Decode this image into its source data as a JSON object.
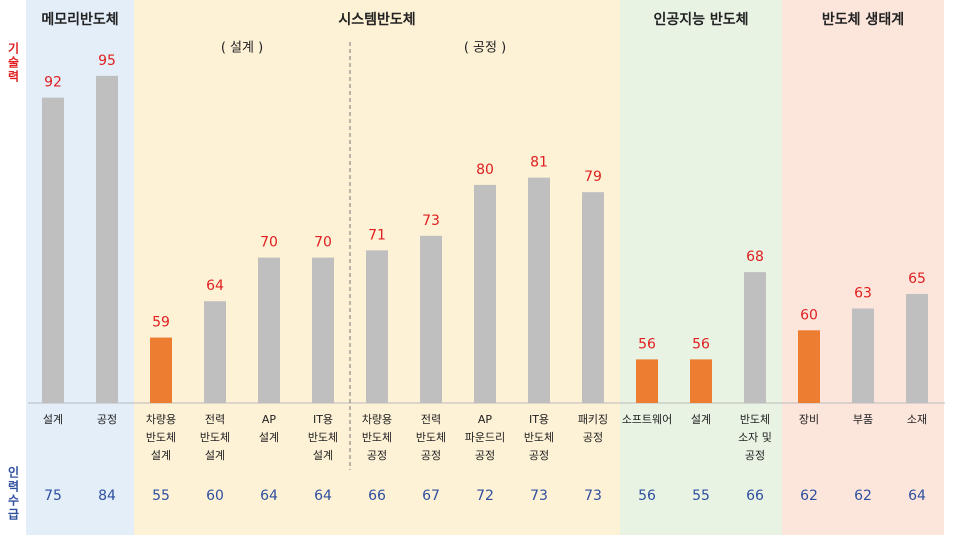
{
  "chart_data": {
    "type": "bar",
    "value_label": "기술력",
    "value_label_color": "#e02020",
    "supply_label": "인력수급",
    "supply_color": "#2f4f9f",
    "ylim": [
      50,
      100
    ],
    "groups": [
      {
        "name": "메모리반도체",
        "color": "#e3eef9",
        "sections": [
          {
            "categories": [
              [
                "설계"
              ],
              [
                "공정"
              ]
            ],
            "values": [
              92,
              95
            ],
            "colors": [
              "#bfbfbf",
              "#bfbfbf"
            ],
            "supply": [
              75,
              84
            ]
          }
        ]
      },
      {
        "name": "시스템반도체",
        "color": "#fdf1d6",
        "sections": [
          {
            "name": "( 설계 )",
            "categories": [
              [
                "차량용",
                "반도체",
                "설계"
              ],
              [
                "전력",
                "반도체",
                "설계"
              ],
              [
                "AP",
                "설계"
              ],
              [
                "IT용",
                "반도체",
                "설계"
              ]
            ],
            "values": [
              59,
              64,
              70,
              70
            ],
            "colors": [
              "#ed7d31",
              "#bfbfbf",
              "#bfbfbf",
              "#bfbfbf"
            ],
            "supply": [
              55,
              60,
              64,
              64
            ]
          },
          {
            "name": "( 공정 )",
            "categories": [
              [
                "차량용",
                "반도체",
                "공정"
              ],
              [
                "전력",
                "반도체",
                "공정"
              ],
              [
                "AP",
                "파운드리",
                "공정"
              ],
              [
                "IT용",
                "반도체",
                "공정"
              ],
              [
                "패키징",
                "공정"
              ]
            ],
            "values": [
              71,
              73,
              80,
              81,
              79
            ],
            "colors": [
              "#bfbfbf",
              "#bfbfbf",
              "#bfbfbf",
              "#bfbfbf",
              "#bfbfbf"
            ],
            "supply": [
              66,
              67,
              72,
              73,
              73
            ]
          }
        ]
      },
      {
        "name": "인공지능 반도체",
        "color": "#e8f3e4",
        "sections": [
          {
            "categories": [
              [
                "소프트웨어"
              ],
              [
                "설계"
              ],
              [
                "반도체",
                "소자 및",
                "공정"
              ]
            ],
            "values": [
              56,
              56,
              68
            ],
            "colors": [
              "#ed7d31",
              "#ed7d31",
              "#bfbfbf"
            ],
            "supply": [
              56,
              55,
              66
            ]
          }
        ]
      },
      {
        "name": "반도체 생태계",
        "color": "#fce6dc",
        "sections": [
          {
            "categories": [
              [
                "장비"
              ],
              [
                "부품"
              ],
              [
                "소재"
              ]
            ],
            "values": [
              60,
              63,
              65
            ],
            "colors": [
              "#ed7d31",
              "#bfbfbf",
              "#bfbfbf"
            ],
            "supply": [
              62,
              62,
              64
            ]
          }
        ]
      }
    ]
  }
}
